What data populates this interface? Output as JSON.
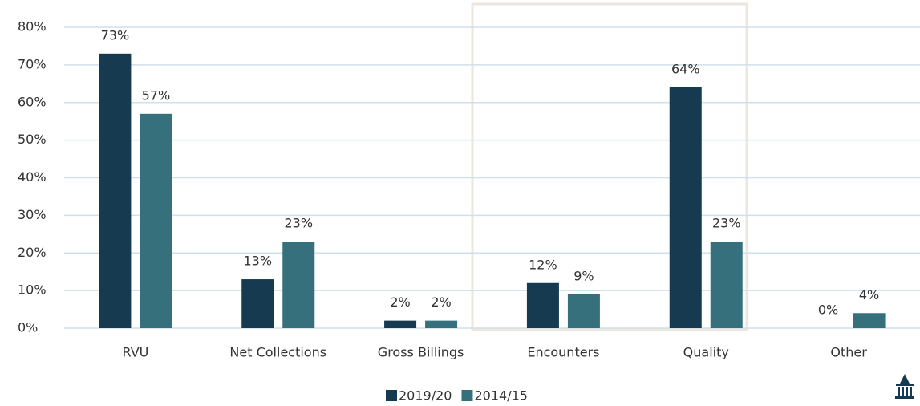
{
  "chart_data": {
    "type": "bar",
    "categories": [
      "RVU",
      "Net Collections",
      "Gross Billings",
      "Encounters",
      "Quality",
      "Other"
    ],
    "series": [
      {
        "name": "2019/20",
        "color": "#163a4f",
        "values": [
          73,
          13,
          2,
          12,
          64,
          0
        ],
        "value_labels": [
          "73%",
          "13%",
          "2%",
          "12%",
          "64%",
          "0%"
        ]
      },
      {
        "name": "2014/15",
        "color": "#36707c",
        "values": [
          57,
          23,
          2,
          9,
          23,
          4
        ],
        "value_labels": [
          "57%",
          "23%",
          "2%",
          "9%",
          "23%",
          "4%"
        ]
      }
    ],
    "ylim": [
      0,
      80
    ],
    "yticks": [
      {
        "value": 0,
        "label": "0%"
      },
      {
        "value": 10,
        "label": "10%"
      },
      {
        "value": 20,
        "label": "20%"
      },
      {
        "value": 30,
        "label": "30%"
      },
      {
        "value": 40,
        "label": "40%"
      },
      {
        "value": 50,
        "label": "50%"
      },
      {
        "value": 60,
        "label": "60%"
      },
      {
        "value": 70,
        "label": "70%"
      },
      {
        "value": 80,
        "label": "80%"
      }
    ],
    "grid": true,
    "legend": "bottom"
  }
}
